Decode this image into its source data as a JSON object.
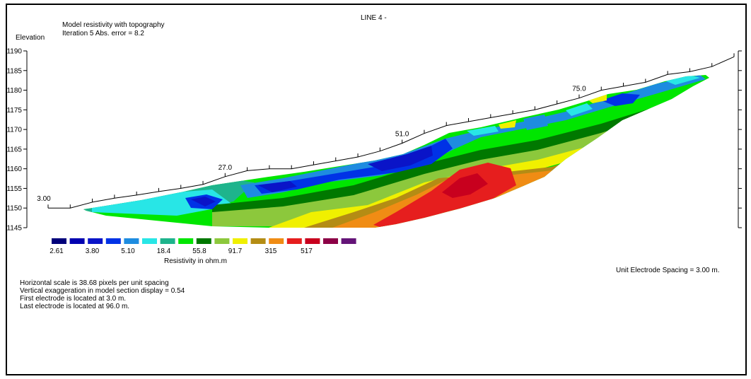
{
  "chart_data": {
    "type": "heatmap",
    "title": "LINE 4 -",
    "subtitle_lines": [
      "Model resistivity with topography",
      "Iteration 5 Abs. error = 8.2"
    ],
    "ylabel": "Elevation",
    "ylim": [
      1145,
      1190
    ],
    "yticks": [
      1190,
      1185,
      1180,
      1175,
      1170,
      1165,
      1160,
      1155,
      1150,
      1145
    ],
    "electrode_labels": [
      {
        "x": 3.0,
        "label": "3.00"
      },
      {
        "x": 27.0,
        "label": "27.0"
      },
      {
        "x": 51.0,
        "label": "51.0"
      },
      {
        "x": 75.0,
        "label": "75.0"
      }
    ],
    "topography": [
      {
        "x": 3,
        "elev": 1150.0
      },
      {
        "x": 6,
        "elev": 1150.0
      },
      {
        "x": 9,
        "elev": 1151.5
      },
      {
        "x": 12,
        "elev": 1152.5
      },
      {
        "x": 15,
        "elev": 1153.3
      },
      {
        "x": 18,
        "elev": 1154.2
      },
      {
        "x": 21,
        "elev": 1155.0
      },
      {
        "x": 24,
        "elev": 1156.0
      },
      {
        "x": 27,
        "elev": 1158.0
      },
      {
        "x": 30,
        "elev": 1159.5
      },
      {
        "x": 33,
        "elev": 1160.0
      },
      {
        "x": 36,
        "elev": 1160.0
      },
      {
        "x": 39,
        "elev": 1161.0
      },
      {
        "x": 42,
        "elev": 1162.0
      },
      {
        "x": 45,
        "elev": 1163.0
      },
      {
        "x": 48,
        "elev": 1164.5
      },
      {
        "x": 51,
        "elev": 1166.5
      },
      {
        "x": 54,
        "elev": 1169.0
      },
      {
        "x": 57,
        "elev": 1171.0
      },
      {
        "x": 60,
        "elev": 1172.0
      },
      {
        "x": 63,
        "elev": 1173.0
      },
      {
        "x": 66,
        "elev": 1174.0
      },
      {
        "x": 69,
        "elev": 1175.0
      },
      {
        "x": 72,
        "elev": 1176.5
      },
      {
        "x": 75,
        "elev": 1178.0
      },
      {
        "x": 78,
        "elev": 1180.0
      },
      {
        "x": 81,
        "elev": 1181.0
      },
      {
        "x": 84,
        "elev": 1182.0
      },
      {
        "x": 87,
        "elev": 1184.0
      },
      {
        "x": 90,
        "elev": 1184.7
      },
      {
        "x": 93,
        "elev": 1186.0
      },
      {
        "x": 96,
        "elev": 1188.5
      }
    ],
    "legend": {
      "title": "Resistivity in ohm.m",
      "colors": [
        "#00007a",
        "#0000b0",
        "#0a14c8",
        "#0032e6",
        "#1e8ce0",
        "#28e6e6",
        "#1eb48c",
        "#00e600",
        "#007800",
        "#8cc83c",
        "#f0f000",
        "#b48c14",
        "#f08c14",
        "#e61e1e",
        "#c8001e",
        "#8c0046",
        "#641478"
      ],
      "labels": [
        "2.61",
        "3.80",
        "5.10",
        "18.4",
        "55.8",
        "91.7",
        "315",
        "517"
      ]
    }
  },
  "notes": {
    "unit_spacing": "Unit Electrode Spacing = 3.00 m.",
    "lines": [
      "Horizontal scale is 38.68 pixels per unit spacing",
      "Vertical exaggeration in model section display = 0.54",
      "First electrode is located at  3.0  m.",
      "Last electrode is located at 96.0 m."
    ]
  }
}
